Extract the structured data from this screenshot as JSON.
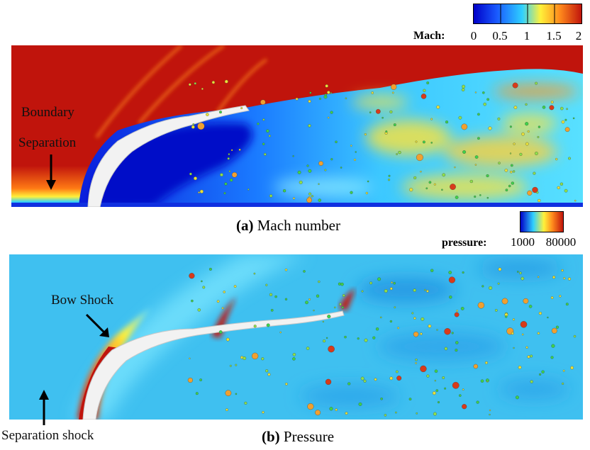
{
  "panel_a": {
    "colorbar": {
      "label": "Mach:",
      "ticks": [
        "0",
        "0.5",
        "1",
        "1.5",
        "2"
      ],
      "colors": [
        "#0000c8",
        "#1a5cff",
        "#2fd0ff",
        "#fff13a",
        "#ff8a1c",
        "#c0140c"
      ]
    },
    "annotations": {
      "boundary": "Boundary",
      "separation": "Separation"
    },
    "caption": {
      "letter": "(a)",
      "text": "Mach number"
    }
  },
  "panel_b": {
    "colorbar": {
      "label": "pressure:",
      "ticks": [
        "1000",
        "80000"
      ],
      "colors": [
        "#0000c8",
        "#2fd0ff",
        "#fff13a",
        "#ff8a1c",
        "#c0140c"
      ]
    },
    "annotations": {
      "bow_shock": "Bow Shock",
      "separation_shock": "Separation shock"
    },
    "caption": {
      "letter": "(b)",
      "text": "Pressure"
    }
  }
}
